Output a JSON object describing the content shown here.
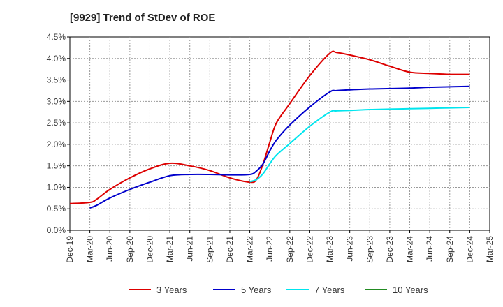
{
  "chart_data": {
    "type": "line",
    "title": "[9929]  Trend of StDev of ROE",
    "xlabel": "",
    "ylabel": "",
    "x_tick_labels": [
      "Dec-19",
      "Mar-20",
      "Jun-20",
      "Sep-20",
      "Dec-20",
      "Mar-21",
      "Jun-21",
      "Sep-21",
      "Dec-21",
      "Mar-22",
      "Jun-22",
      "Sep-22",
      "Dec-22",
      "Mar-23",
      "Jun-23",
      "Sep-23",
      "Dec-23",
      "Mar-24",
      "Jun-24",
      "Sep-24",
      "Dec-24",
      "Mar-25"
    ],
    "y_tick_labels": [
      "0.0%",
      "0.5%",
      "1.0%",
      "1.5%",
      "2.0%",
      "2.5%",
      "3.0%",
      "3.5%",
      "4.0%",
      "4.5%"
    ],
    "ylim": [
      0,
      4.5
    ],
    "grid": true,
    "legend_position": "bottom",
    "series": [
      {
        "name": "3 Years",
        "color": "#dd0000",
        "x": [
          "Dec-19",
          "Mar-20",
          "Apr-20",
          "Jun-20",
          "Sep-20",
          "Dec-20",
          "Mar-21",
          "Jun-21",
          "Sep-21",
          "Dec-21",
          "Mar-22",
          "Apr-22",
          "May-22",
          "Jun-22",
          "Jul-22",
          "Sep-22",
          "Dec-22",
          "Mar-23",
          "Apr-23",
          "Jun-23",
          "Sep-23",
          "Dec-23",
          "Mar-24",
          "Jun-24",
          "Sep-24",
          "Dec-24"
        ],
        "y": [
          0.62,
          0.65,
          0.72,
          0.95,
          1.22,
          1.43,
          1.56,
          1.5,
          1.39,
          1.22,
          1.12,
          1.18,
          1.55,
          2.05,
          2.5,
          2.95,
          3.6,
          4.12,
          4.14,
          4.08,
          3.97,
          3.82,
          3.68,
          3.65,
          3.63,
          3.63
        ]
      },
      {
        "name": "5 Years",
        "color": "#0000cc",
        "x": [
          "Mar-20",
          "Apr-20",
          "Jun-20",
          "Sep-20",
          "Dec-20",
          "Mar-21",
          "Jun-21",
          "Sep-21",
          "Dec-21",
          "Mar-22",
          "Apr-22",
          "May-22",
          "Jun-22",
          "Jul-22",
          "Sep-22",
          "Dec-22",
          "Mar-23",
          "Apr-23",
          "Jun-23",
          "Sep-23",
          "Dec-23",
          "Mar-24",
          "Jun-24",
          "Sep-24",
          "Dec-24"
        ],
        "y": [
          0.52,
          0.58,
          0.75,
          0.95,
          1.12,
          1.27,
          1.3,
          1.3,
          1.29,
          1.3,
          1.38,
          1.55,
          1.85,
          2.1,
          2.45,
          2.87,
          3.22,
          3.25,
          3.27,
          3.29,
          3.3,
          3.31,
          3.33,
          3.34,
          3.35
        ]
      },
      {
        "name": "7 Years",
        "color": "#00e5ee",
        "x": [
          "Mar-22",
          "Apr-22",
          "May-22",
          "Jun-22",
          "Jul-22",
          "Sep-22",
          "Dec-22",
          "Mar-23",
          "Apr-23",
          "Jun-23",
          "Sep-23",
          "Dec-23",
          "Mar-24",
          "Jun-24",
          "Sep-24",
          "Dec-24"
        ],
        "y": [
          1.13,
          1.18,
          1.32,
          1.55,
          1.75,
          2.02,
          2.42,
          2.75,
          2.78,
          2.79,
          2.81,
          2.82,
          2.83,
          2.84,
          2.85,
          2.86
        ]
      },
      {
        "name": "10 Years",
        "color": "#228b22",
        "x": [],
        "y": []
      }
    ]
  }
}
